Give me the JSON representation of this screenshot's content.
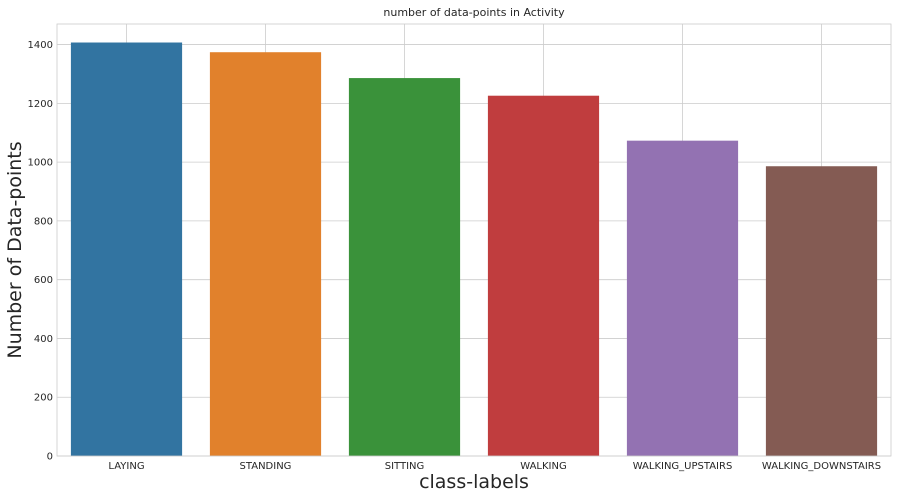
{
  "chart_data": {
    "type": "bar",
    "title": "number of data-points in Activity",
    "xlabel": "class-labels",
    "ylabel": "Number of Data-points",
    "categories": [
      "LAYING",
      "STANDING",
      "SITTING",
      "WALKING",
      "WALKING_UPSTAIRS",
      "WALKING_DOWNSTAIRS"
    ],
    "values": [
      1407,
      1374,
      1286,
      1226,
      1073,
      986
    ],
    "colors": [
      "#3274a1",
      "#e1812c",
      "#3a923a",
      "#c03d3e",
      "#9372b2",
      "#845b53"
    ],
    "ylim": [
      0,
      1470
    ],
    "yticks": [
      0,
      200,
      400,
      600,
      800,
      1000,
      1200,
      1400
    ],
    "grid": true,
    "legend": "none"
  }
}
